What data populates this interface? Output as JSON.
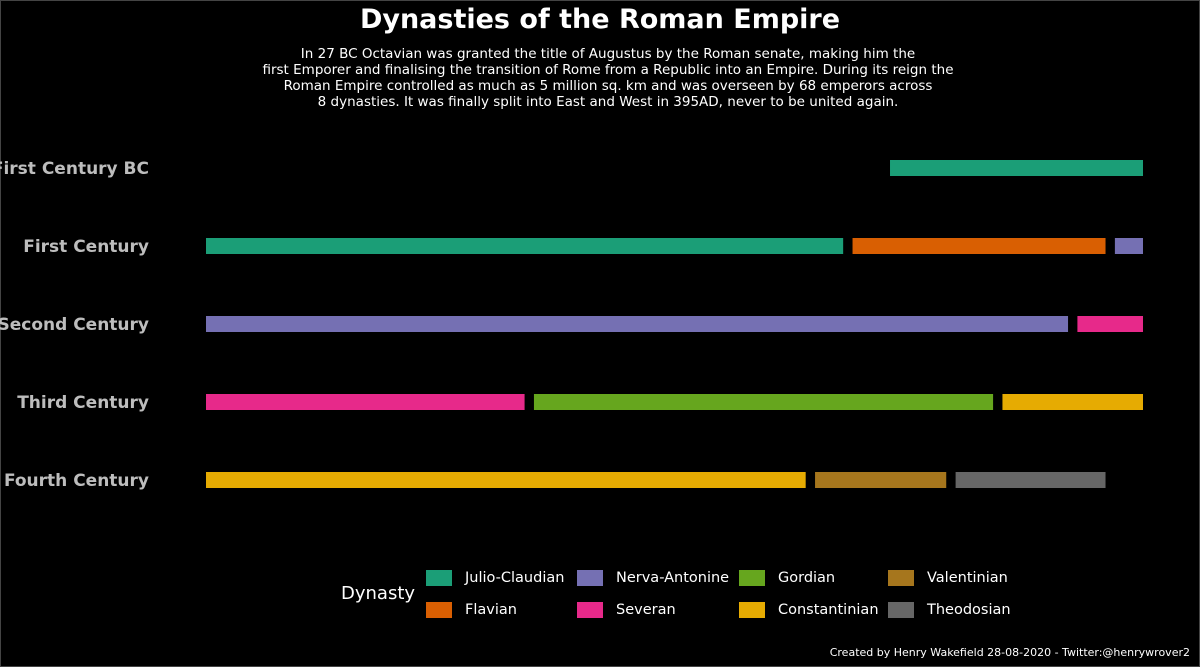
{
  "title": "Dynasties of the Roman Empire",
  "subtitle": "In 27 BC Octavian was granted the title of Augustus by the Roman senate, making him the\nfirst Emporer and finalising the transition of Rome from a Republic into an Empire. During its reign the\nRoman Empire controlled as much as 5 million sq. km and was overseen by 68 emperors across\n8 dynasties. It was finally split into East and West in 395AD, never to be united again.",
  "caption": "Created by Henry Wakefield 28-08-2020 - Twitter:@henrywrover2",
  "legend": {
    "title": "Dynasty",
    "items": [
      {
        "label": "Julio-Claudian",
        "color": "#1b9e77"
      },
      {
        "label": "Flavian",
        "color": "#d95f02"
      },
      {
        "label": "Nerva-Antonine",
        "color": "#7570b3"
      },
      {
        "label": "Severan",
        "color": "#e7298a"
      },
      {
        "label": "Gordian",
        "color": "#66a61e"
      },
      {
        "label": "Constantinian",
        "color": "#e6ab02"
      },
      {
        "label": "Valentinian",
        "color": "#a6761d"
      },
      {
        "label": "Theodosian",
        "color": "#666666"
      }
    ]
  },
  "chart_data": {
    "type": "bar",
    "orientation": "horizontal-timeline",
    "title": "Dynasties of the Roman Empire",
    "xlim": [
      0,
      100
    ],
    "grid": false,
    "legend_position": "bottom",
    "categories": [
      "First Century BC",
      "First Century",
      "Second Century",
      "Third Century",
      "Fourth Century"
    ],
    "segments": [
      {
        "category": "First Century BC",
        "dynasty": "Julio-Claudian",
        "start": 73,
        "end": 100
      },
      {
        "category": "First Century",
        "dynasty": "Julio-Claudian",
        "start": 0,
        "end": 68
      },
      {
        "category": "First Century",
        "dynasty": "Flavian",
        "start": 69,
        "end": 96
      },
      {
        "category": "First Century",
        "dynasty": "Nerva-Antonine",
        "start": 97,
        "end": 100
      },
      {
        "category": "Second Century",
        "dynasty": "Nerva-Antonine",
        "start": 0,
        "end": 92
      },
      {
        "category": "Second Century",
        "dynasty": "Severan",
        "start": 93,
        "end": 100
      },
      {
        "category": "Third Century",
        "dynasty": "Severan",
        "start": 0,
        "end": 34
      },
      {
        "category": "Third Century",
        "dynasty": "Gordian",
        "start": 35,
        "end": 84
      },
      {
        "category": "Third Century",
        "dynasty": "Constantinian",
        "start": 85,
        "end": 100
      },
      {
        "category": "Fourth Century",
        "dynasty": "Constantinian",
        "start": 0,
        "end": 64
      },
      {
        "category": "Fourth Century",
        "dynasty": "Valentinian",
        "start": 65,
        "end": 79
      },
      {
        "category": "Fourth Century",
        "dynasty": "Theodosian",
        "start": 80,
        "end": 96
      }
    ]
  }
}
